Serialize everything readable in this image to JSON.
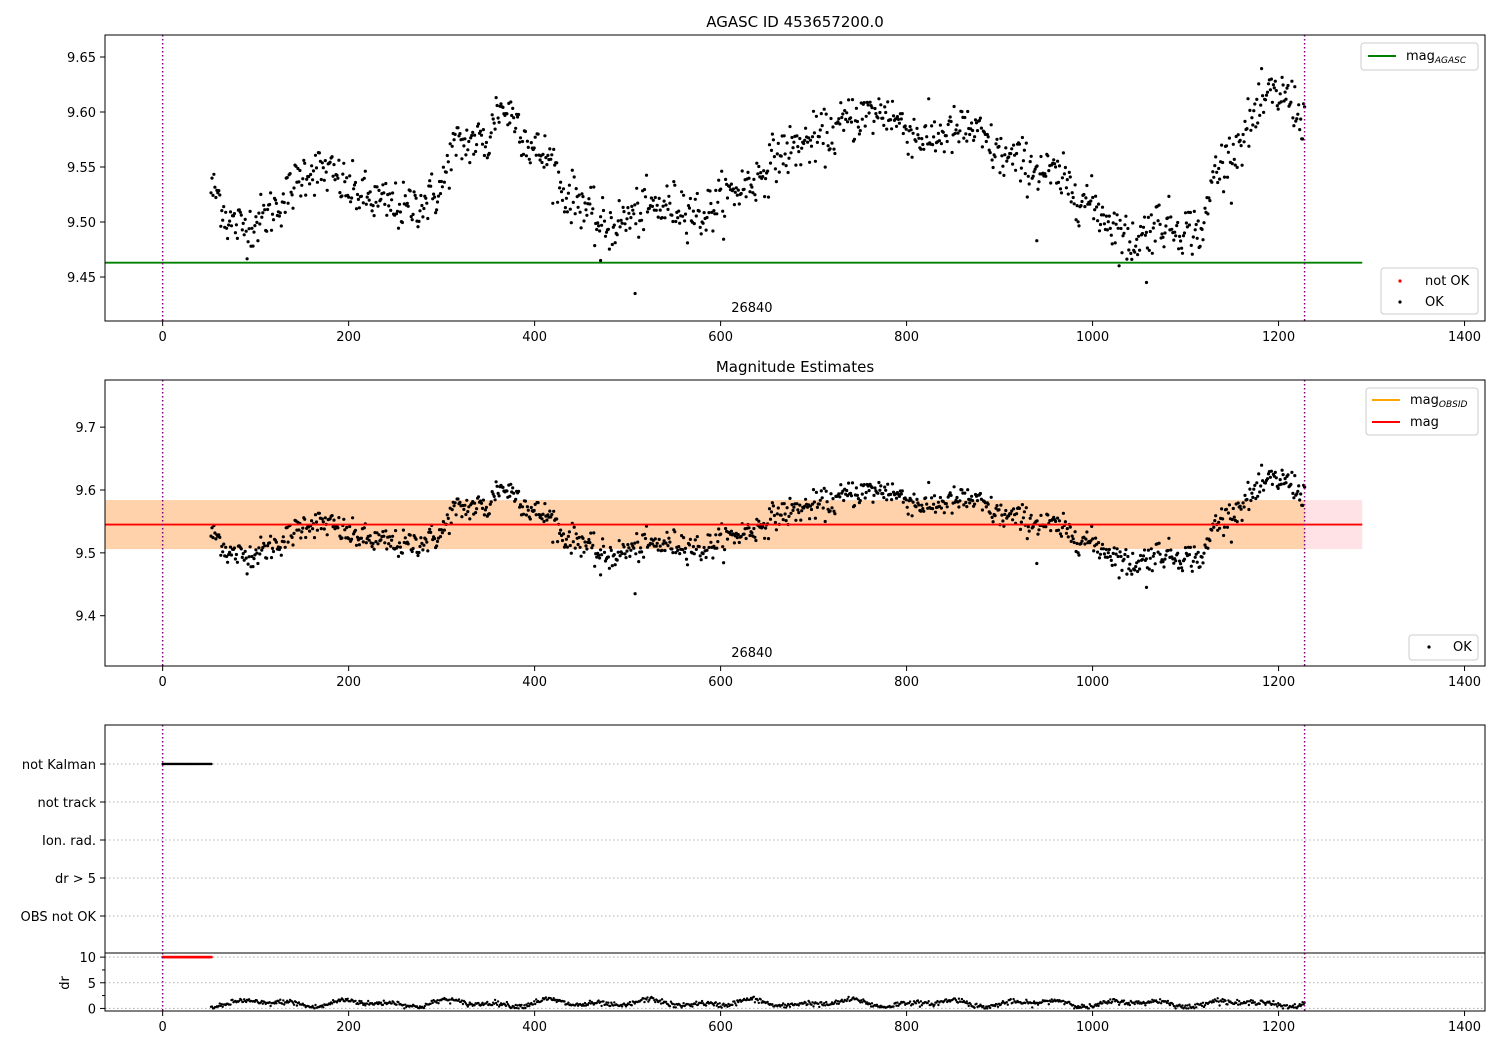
{
  "chart_data": [
    {
      "type": "scatter",
      "title": "AGASC ID 453657200.0",
      "xlim": [
        -62,
        1422
      ],
      "ylim": [
        9.41,
        9.67
      ],
      "xticks": [
        0,
        200,
        400,
        600,
        800,
        1000,
        1200,
        1400
      ],
      "yticks": [
        9.45,
        9.5,
        9.55,
        9.6,
        9.65
      ],
      "ytick_labels": [
        "9.45",
        "9.50",
        "9.55",
        "9.60",
        "9.65"
      ],
      "vlines": [
        0,
        1228
      ],
      "obs_label": "26840",
      "obs_label_x": 610,
      "mag_agasc": 9.463,
      "line_xrange": [
        -62,
        1290
      ],
      "legend_upper": {
        "position": "upper-right",
        "entries": [
          {
            "label": "mag",
            "sub": "AGASC",
            "color": "#008000"
          }
        ]
      },
      "legend_lower": {
        "position": "lower-right",
        "entries": [
          {
            "label": "not OK",
            "color": "#ff0000"
          },
          {
            "label": "OK",
            "color": "#000000"
          }
        ]
      },
      "series": [
        {
          "name": "OK",
          "color": "#000000",
          "anchors": [
            [
              52,
              9.53
            ],
            [
              60,
              9.525
            ],
            [
              70,
              9.5
            ],
            [
              90,
              9.495
            ],
            [
              110,
              9.505
            ],
            [
              130,
              9.52
            ],
            [
              155,
              9.548
            ],
            [
              180,
              9.545
            ],
            [
              200,
              9.53
            ],
            [
              225,
              9.52
            ],
            [
              260,
              9.512
            ],
            [
              285,
              9.52
            ],
            [
              300,
              9.53
            ],
            [
              312,
              9.568
            ],
            [
              340,
              9.575
            ],
            [
              350,
              9.57
            ],
            [
              360,
              9.605
            ],
            [
              380,
              9.595
            ],
            [
              395,
              9.568
            ],
            [
              420,
              9.555
            ],
            [
              430,
              9.525
            ],
            [
              450,
              9.52
            ],
            [
              465,
              9.5
            ],
            [
              480,
              9.495
            ],
            [
              520,
              9.512
            ],
            [
              560,
              9.515
            ],
            [
              580,
              9.505
            ],
            [
              600,
              9.52
            ],
            [
              640,
              9.54
            ],
            [
              660,
              9.56
            ],
            [
              700,
              9.575
            ],
            [
              720,
              9.58
            ],
            [
              740,
              9.595
            ],
            [
              780,
              9.6
            ],
            [
              800,
              9.585
            ],
            [
              820,
              9.575
            ],
            [
              840,
              9.58
            ],
            [
              870,
              9.585
            ],
            [
              900,
              9.56
            ],
            [
              920,
              9.555
            ],
            [
              960,
              9.542
            ],
            [
              980,
              9.528
            ],
            [
              1000,
              9.515
            ],
            [
              1020,
              9.5
            ],
            [
              1040,
              9.48
            ],
            [
              1070,
              9.5
            ],
            [
              1090,
              9.495
            ],
            [
              1120,
              9.492
            ],
            [
              1130,
              9.545
            ],
            [
              1150,
              9.562
            ],
            [
              1170,
              9.59
            ],
            [
              1190,
              9.615
            ],
            [
              1210,
              9.615
            ],
            [
              1228,
              9.59
            ]
          ],
          "noise": 0.011,
          "outliers": [
            [
              471,
              9.465
            ],
            [
              508,
              9.435
            ],
            [
              1058,
              9.445
            ],
            [
              940,
              9.483
            ]
          ]
        }
      ]
    },
    {
      "type": "scatter",
      "title": "Magnitude Estimates",
      "xlim": [
        -62,
        1422
      ],
      "ylim": [
        9.32,
        9.775
      ],
      "xticks": [
        0,
        200,
        400,
        600,
        800,
        1000,
        1200,
        1400
      ],
      "yticks": [
        9.4,
        9.5,
        9.6,
        9.7
      ],
      "ytick_labels": [
        "9.4",
        "9.5",
        "9.6",
        "9.7"
      ],
      "vlines": [
        0,
        1228
      ],
      "obs_label": "26840",
      "obs_label_x": 610,
      "mag": 9.545,
      "mag_band": [
        9.506,
        9.584
      ],
      "mag_obsid": 9.545,
      "obsid_band": [
        9.506,
        9.584
      ],
      "line_xrange": [
        -62,
        1290
      ],
      "band_colors": {
        "mag": "#ffb6c1",
        "obsid": "#ffa500"
      },
      "legend_upper": {
        "position": "upper-right",
        "entries": [
          {
            "label": "mag",
            "sub": "OBSID",
            "color": "#ffa500"
          },
          {
            "label": "mag",
            "color": "#ff0000"
          }
        ]
      },
      "legend_lower": {
        "position": "lower-right",
        "entries": [
          {
            "label": "OK",
            "color": "#000000"
          }
        ]
      }
    },
    {
      "type": "scatter",
      "xlim": [
        -62,
        1422
      ],
      "xticks": [
        0,
        200,
        400,
        600,
        800,
        1000,
        1200,
        1400
      ],
      "vlines": [
        0,
        1228
      ],
      "flag_labels": [
        "not Kalman",
        "not track",
        "Ion. rad.",
        "dr > 5",
        "OBS not OK"
      ],
      "flags": {
        "not Kalman": [
          [
            0,
            53
          ]
        ]
      },
      "dr": {
        "ylabel": "dr",
        "ylim": [
          -0.5,
          10.8
        ],
        "yticks": [
          0,
          5,
          10
        ],
        "ytick_labels": [
          "0",
          "5",
          "10"
        ],
        "clipped_value": 10,
        "clipped_range": [
          0,
          53
        ],
        "clipped_color": "#ff0000",
        "range": [
          52,
          1228
        ],
        "mean": 1.0,
        "amplitude": 0.8
      }
    }
  ]
}
